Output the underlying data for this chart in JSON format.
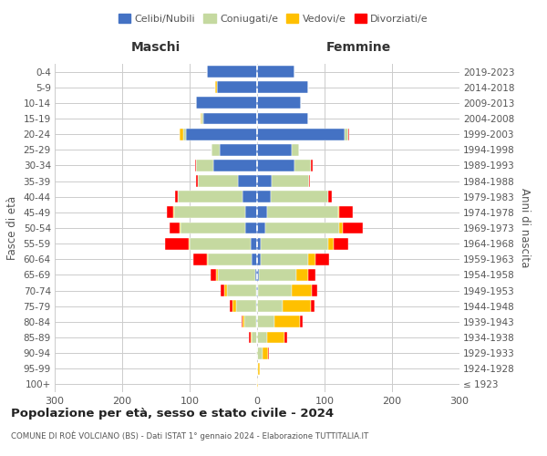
{
  "age_groups": [
    "100+",
    "95-99",
    "90-94",
    "85-89",
    "80-84",
    "75-79",
    "70-74",
    "65-69",
    "60-64",
    "55-59",
    "50-54",
    "45-49",
    "40-44",
    "35-39",
    "30-34",
    "25-29",
    "20-24",
    "15-19",
    "10-14",
    "5-9",
    "0-4"
  ],
  "birth_years": [
    "≤ 1923",
    "1924-1928",
    "1929-1933",
    "1934-1938",
    "1939-1943",
    "1944-1948",
    "1949-1953",
    "1954-1958",
    "1959-1963",
    "1964-1968",
    "1969-1973",
    "1974-1978",
    "1979-1983",
    "1984-1988",
    "1989-1993",
    "1994-1998",
    "1999-2003",
    "2004-2008",
    "2009-2013",
    "2014-2018",
    "2019-2023"
  ],
  "male": {
    "celibi": [
      0,
      0,
      0,
      0,
      1,
      1,
      2,
      3,
      8,
      10,
      18,
      18,
      22,
      28,
      65,
      55,
      105,
      80,
      90,
      60,
      75
    ],
    "coniugati": [
      0,
      0,
      2,
      8,
      18,
      30,
      42,
      55,
      65,
      90,
      95,
      105,
      95,
      60,
      25,
      12,
      5,
      2,
      0,
      0,
      0
    ],
    "vedovi": [
      0,
      0,
      0,
      2,
      2,
      5,
      5,
      3,
      2,
      2,
      2,
      1,
      0,
      0,
      0,
      0,
      5,
      2,
      0,
      2,
      0
    ],
    "divorziati": [
      0,
      0,
      0,
      2,
      2,
      5,
      5,
      8,
      20,
      35,
      15,
      10,
      5,
      2,
      2,
      0,
      0,
      0,
      0,
      0,
      0
    ]
  },
  "female": {
    "nubili": [
      0,
      0,
      0,
      0,
      0,
      0,
      1,
      3,
      5,
      5,
      12,
      15,
      20,
      22,
      55,
      52,
      130,
      75,
      65,
      75,
      55
    ],
    "coniugate": [
      0,
      2,
      8,
      15,
      25,
      38,
      50,
      55,
      70,
      100,
      110,
      105,
      85,
      55,
      25,
      10,
      5,
      0,
      0,
      0,
      0
    ],
    "vedove": [
      2,
      2,
      8,
      25,
      38,
      42,
      30,
      18,
      12,
      8,
      5,
      2,
      1,
      0,
      0,
      0,
      0,
      0,
      0,
      0,
      0
    ],
    "divorziate": [
      0,
      0,
      2,
      5,
      5,
      5,
      8,
      10,
      20,
      22,
      30,
      20,
      5,
      2,
      2,
      0,
      2,
      0,
      0,
      0,
      0
    ]
  },
  "colors": {
    "celibi": "#4472c4",
    "coniugati": "#c5d9a0",
    "vedovi": "#ffc000",
    "divorziati": "#ff0000"
  },
  "xlim": [
    -300,
    300
  ],
  "xticks": [
    -300,
    -200,
    -100,
    0,
    100,
    200,
    300
  ],
  "xtick_labels": [
    "300",
    "200",
    "100",
    "0",
    "100",
    "200",
    "300"
  ],
  "title": "Popolazione per età, sesso e stato civile - 2024",
  "subtitle": "COMUNE DI ROÈ VOLCIANO (BS) - Dati ISTAT 1° gennaio 2024 - Elaborazione TUTTITALIA.IT",
  "ylabel_left": "Fasce di età",
  "ylabel_right": "Anni di nascita",
  "label_maschi": "Maschi",
  "label_femmine": "Femmine",
  "legend_labels": [
    "Celibi/Nubili",
    "Coniugati/e",
    "Vedovi/e",
    "Divorziati/e"
  ],
  "background_color": "#ffffff",
  "grid_color": "#cccccc"
}
